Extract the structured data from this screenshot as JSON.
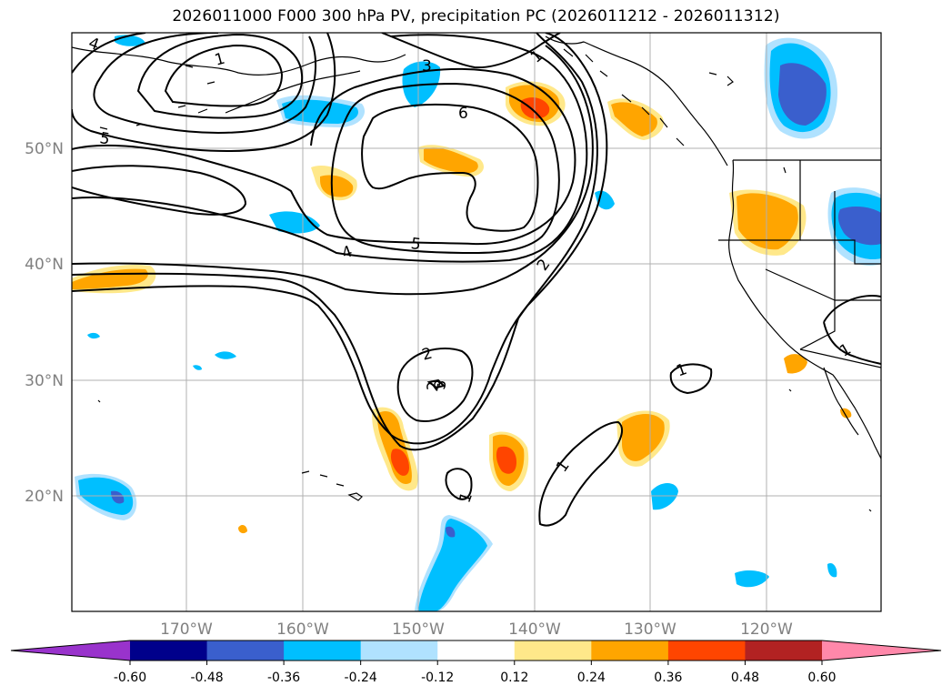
{
  "title": "2026011000 F000 300 hPa PV, precipitation PC (2026011212 - 2026011312)",
  "colors": {
    "frame": "#000000",
    "grid": "#b0b0b0",
    "coast": "#000000",
    "tick_label": "#808080"
  },
  "map": {
    "lat_labels": [
      "50°N",
      "40°N",
      "30°N",
      "20°N"
    ],
    "lon_labels": [
      "170°W",
      "160°W",
      "150°W",
      "140°W",
      "130°W",
      "120°W"
    ]
  },
  "pv_contours": {
    "labels": [
      "1",
      "2",
      "3",
      "4",
      "5",
      "6",
      "1",
      "2",
      "1",
      "1",
      "1",
      "1",
      "2",
      "3",
      "4",
      "5"
    ]
  },
  "colorbar": {
    "bounds": [
      "-0.60",
      "-0.48",
      "-0.36",
      "-0.24",
      "-0.12",
      "0.12",
      "0.24",
      "0.36",
      "0.48",
      "0.60"
    ],
    "colors": [
      "#9933cc",
      "#00008b",
      "#3a5fcd",
      "#00bfff",
      "#b0e2ff",
      "#ffffff",
      "#ffe88a",
      "#ffa500",
      "#ff4500",
      "#b22222",
      "#ff88aa"
    ]
  }
}
